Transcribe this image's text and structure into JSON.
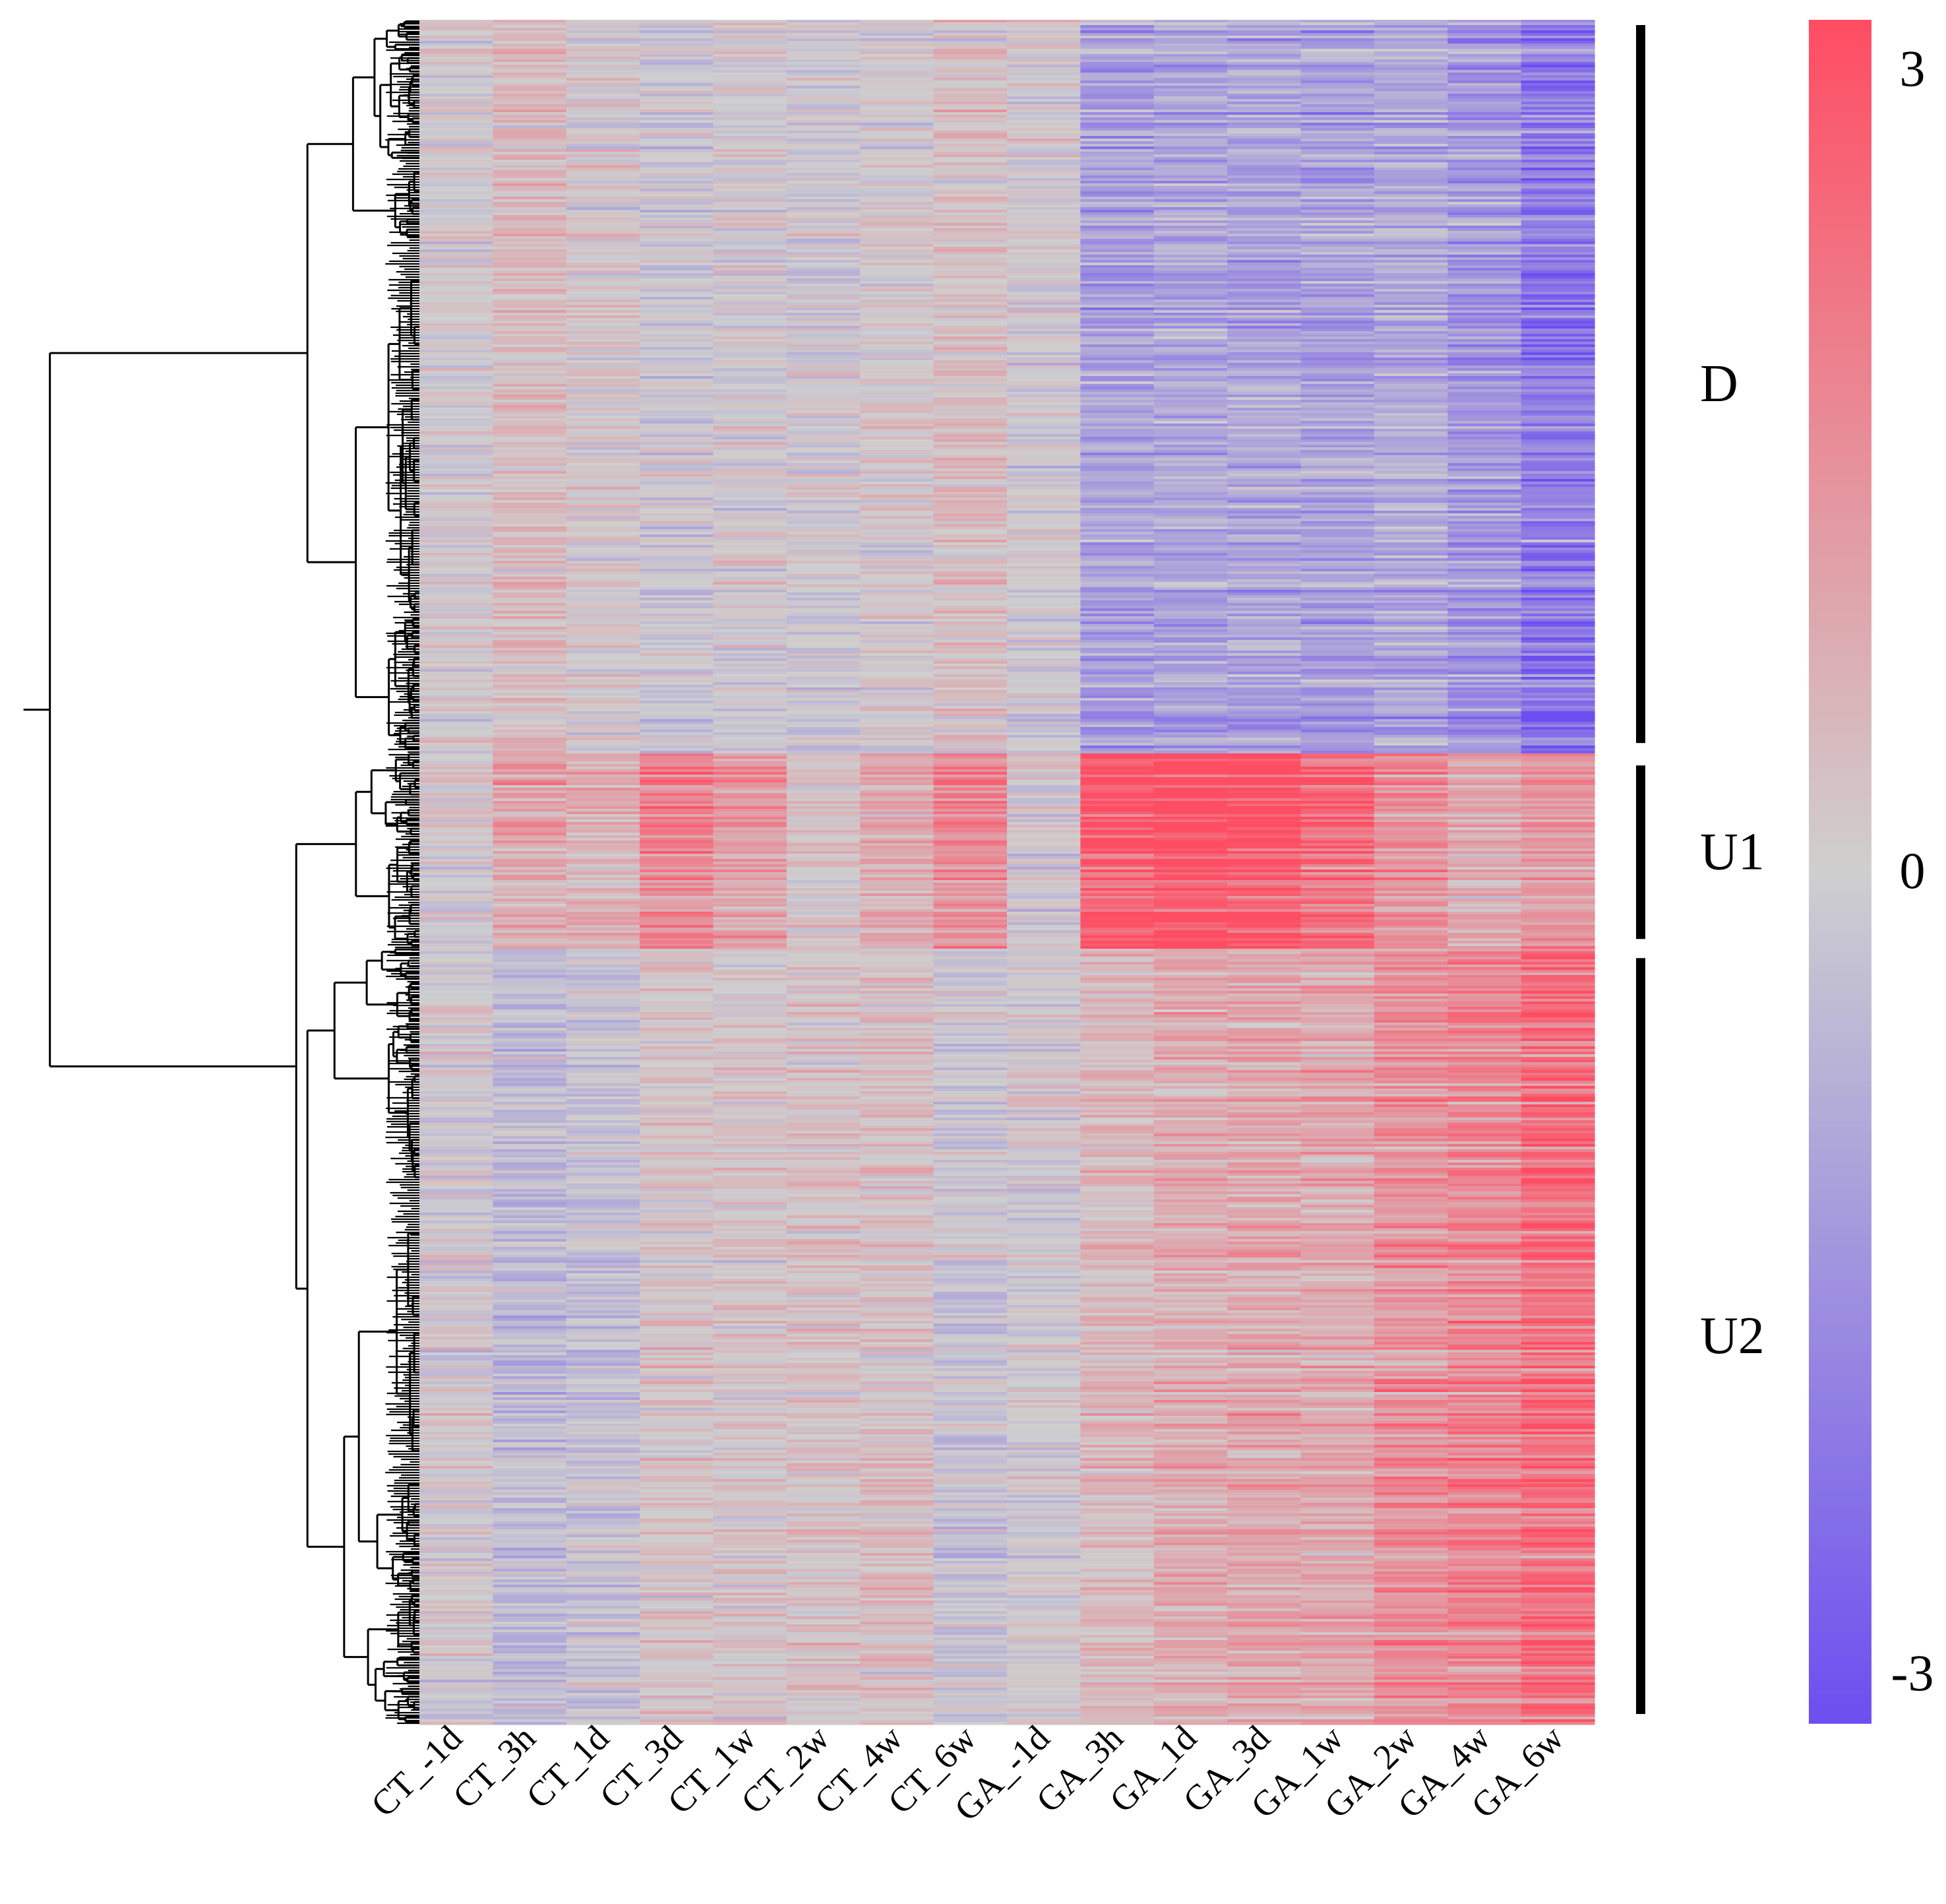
{
  "chart_data": {
    "type": "heatmap",
    "title": "",
    "xlabel": "",
    "ylabel": "",
    "columns": [
      "CT_-1d",
      "CT_3h",
      "CT_1d",
      "CT_3d",
      "CT_1w",
      "CT_2w",
      "CT_4w",
      "CT_6w",
      "GA_-1d",
      "GA_3h",
      "GA_1d",
      "GA_3d",
      "GA_1w",
      "GA_2w",
      "GA_4w",
      "GA_6w"
    ],
    "row_dendrogram": true,
    "clusters": [
      {
        "label": "D",
        "row_fraction": 0.43,
        "column_means": [
          0.05,
          0.45,
          0.15,
          -0.2,
          0.0,
          -0.1,
          0.1,
          0.35,
          -0.05,
          -1.1,
          -1.0,
          -1.0,
          -1.1,
          -0.9,
          -1.3,
          -2.0
        ]
      },
      {
        "label": "U1",
        "row_fraction": 0.115,
        "column_means": [
          0.1,
          0.9,
          0.7,
          1.7,
          1.1,
          0.2,
          0.8,
          1.5,
          0.0,
          2.8,
          3.0,
          2.9,
          2.2,
          1.4,
          0.8,
          1.3
        ]
      },
      {
        "label": "U2",
        "row_fraction": 0.455,
        "column_means": [
          0.05,
          -0.45,
          -0.3,
          0.25,
          0.25,
          0.3,
          0.35,
          -0.2,
          0.0,
          0.5,
          0.8,
          0.9,
          0.9,
          1.4,
          1.7,
          2.2
        ]
      }
    ],
    "colorscale": {
      "min": -3,
      "center": 0,
      "max": 3,
      "low_color": "#6b4ff0",
      "mid_color": "#cfcfcf",
      "high_color": "#ff4d63"
    },
    "colorbar_ticks": [
      {
        "value": 3,
        "label": "3"
      },
      {
        "value": 0,
        "label": "0"
      },
      {
        "value": -3,
        "label": "-3"
      }
    ]
  }
}
